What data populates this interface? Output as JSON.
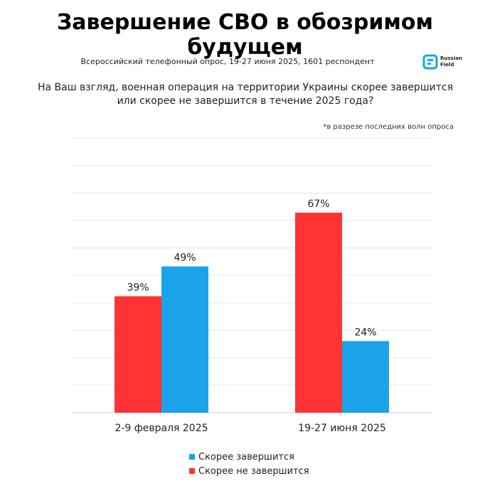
{
  "header": {
    "title": "Завершение СВО в обозримом будущем",
    "subtitle": "Всероссийский телефонный опрос, 19-27 июня 2025, 1601 респондент",
    "logo_text": "Russian\nField"
  },
  "question": "На Ваш взгляд, военная операция на территории Украины скорее завершится или скорее не завершится в течение 2025 года?",
  "note": "*в разрезе последних волн опроса",
  "colors": {
    "red": "#ff3333",
    "blue": "#1aa3e8",
    "grid": "#e6e6e6"
  },
  "chart_data": {
    "type": "bar",
    "categories": [
      "2-9 февраля 2025",
      "19-27 июня 2025"
    ],
    "series": [
      {
        "name": "Скорее не завершится",
        "color": "#ff3333",
        "values": [
          39,
          67
        ],
        "labels": [
          "39%",
          "67%"
        ]
      },
      {
        "name": "Скорее завершится",
        "color": "#1aa3e8",
        "values": [
          49,
          24
        ],
        "labels": [
          "49%",
          "24%"
        ]
      }
    ],
    "ylim": [
      0,
      92
    ],
    "grid": true,
    "legend_order": [
      "Скорее завершится",
      "Скорее не завершится"
    ],
    "legend_position": "bottom"
  }
}
